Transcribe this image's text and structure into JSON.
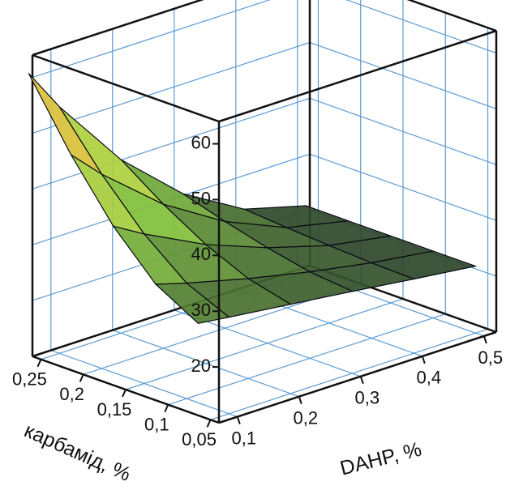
{
  "chart_data": {
    "type": "surface",
    "x_label": "DAHP, %",
    "y_label": "карбамід, %",
    "x": [
      0.05,
      0.1,
      0.2,
      0.3,
      0.4,
      0.5
    ],
    "y": [
      0.05,
      0.1,
      0.15,
      0.2,
      0.25
    ],
    "values": [
      [
        28,
        27.3,
        26,
        24.7,
        23.3,
        22
      ],
      [
        32.3,
        30.7,
        27.9,
        25.5,
        23.5,
        22
      ],
      [
        40,
        36.8,
        31.3,
        27.1,
        23.9,
        22
      ],
      [
        50.1,
        44.8,
        35.8,
        29.1,
        24.4,
        22
      ],
      [
        62,
        54.2,
        41.1,
        31.4,
        25,
        22
      ]
    ],
    "xlim": [
      0.07,
      0.52
    ],
    "ylim": [
      0.04,
      0.26
    ],
    "zlim": [
      10,
      64
    ],
    "xticks": [
      {
        "value": 0.1,
        "label": "0,1"
      },
      {
        "value": 0.2,
        "label": "0,2"
      },
      {
        "value": 0.3,
        "label": "0,3"
      },
      {
        "value": 0.4,
        "label": "0,4"
      },
      {
        "value": 0.5,
        "label": "0,5"
      }
    ],
    "yticks": [
      {
        "value": 0.05,
        "label": "0,05"
      },
      {
        "value": 0.1,
        "label": "0,1"
      },
      {
        "value": 0.15,
        "label": "0,15"
      },
      {
        "value": 0.2,
        "label": "0,2"
      },
      {
        "value": 0.25,
        "label": "0,25"
      }
    ],
    "zticks": [
      20,
      30,
      40,
      50,
      60
    ],
    "colormap": [
      "#14142e",
      "#2f4a2a",
      "#7fbf3a",
      "#d8e040",
      "#e02a20"
    ],
    "grid": true
  }
}
